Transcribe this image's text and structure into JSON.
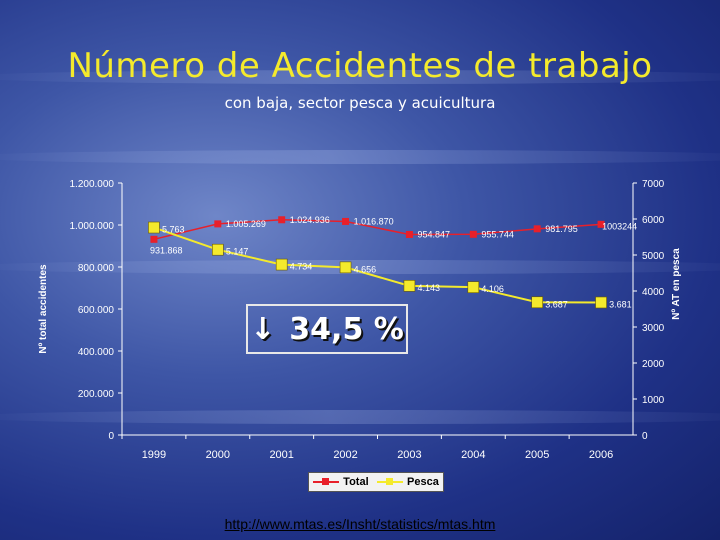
{
  "slide": {
    "title": "Número de Accidentes de trabajo",
    "subtitle": "con baja, sector pesca y acuicultura",
    "callout_arrow": "↓",
    "callout_text": "34,5 %",
    "link": "http://www.mtas.es/Insht/statistics/mtas.htm"
  },
  "colors": {
    "total": "#e8202a",
    "pesca": "#f4ea2c",
    "title": "#f4ea2c"
  },
  "chart_data": {
    "type": "line",
    "categories": [
      "1999",
      "2000",
      "2001",
      "2002",
      "2003",
      "2004",
      "2005",
      "2006"
    ],
    "left_axis": {
      "label": "Nº total accidentes",
      "ticks": [
        "1.200.000",
        "1.000.000",
        "800.000",
        "600.000",
        "400.000",
        "200.000",
        "0"
      ],
      "range": [
        0,
        1200000
      ]
    },
    "right_axis": {
      "label": "Nº AT en pesca",
      "ticks": [
        "7000",
        "6000",
        "5000",
        "4000",
        "3000",
        "2000",
        "1000",
        "0"
      ],
      "range": [
        0,
        7000
      ]
    },
    "series": [
      {
        "name": "Total",
        "axis": "left",
        "values": [
          931868,
          1005269,
          1024936,
          1016870,
          954847,
          955744,
          981795,
          1003244
        ],
        "labels": [
          "931.868",
          "1.005.269",
          "1.024.936",
          "1.016.870",
          "954.847",
          "955.744",
          "981.795",
          "1003244"
        ]
      },
      {
        "name": "Pesca",
        "axis": "right",
        "values": [
          5763,
          5147,
          4734,
          4656,
          4143,
          4106,
          3687,
          3681
        ],
        "labels": [
          "5.763",
          "5.147",
          "4.734",
          "4.656",
          "4.143",
          "4.106",
          "3.687",
          "3.681"
        ]
      }
    ],
    "legend": [
      "Total",
      "Pesca"
    ],
    "legend_position": "bottom",
    "grid": false
  }
}
